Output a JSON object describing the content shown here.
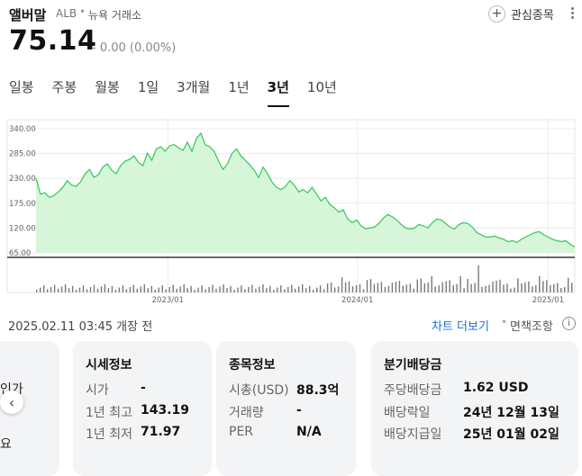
{
  "header": {
    "stock_name": "앨버말",
    "ticker": "ALB",
    "separator": "•",
    "exchange": "뉴욕 거래소",
    "watch_label": "관심종목",
    "price": "75.14",
    "change": "- 0.00 (0.00%)"
  },
  "tabs": [
    {
      "label": "일봉"
    },
    {
      "label": "주봉"
    },
    {
      "label": "월봉"
    },
    {
      "label": "1일"
    },
    {
      "label": "3개월"
    },
    {
      "label": "1년"
    },
    {
      "label": "3년"
    },
    {
      "label": "10년"
    }
  ],
  "active_tab": "3년",
  "colors": {
    "line": "#34c759",
    "fill": "#d6f5d9",
    "volume": "#777777",
    "link": "#1a6fd1"
  },
  "chart_data": {
    "type": "area",
    "y_ticks": [
      "340.00",
      "285.00",
      "230.00",
      "175.00",
      "120.00",
      "65.00"
    ],
    "ylim": [
      65,
      340
    ],
    "x_ticks": [
      {
        "label": "2023/01",
        "t": 0.283
      },
      {
        "label": "2024/01",
        "t": 0.617
      },
      {
        "label": "2025/01",
        "t": 0.953
      }
    ],
    "values": [
      230,
      195,
      198,
      188,
      192,
      200,
      210,
      225,
      215,
      212,
      222,
      240,
      250,
      232,
      238,
      255,
      262,
      248,
      240,
      258,
      268,
      272,
      280,
      265,
      258,
      286,
      270,
      295,
      300,
      290,
      302,
      305,
      298,
      292,
      310,
      290,
      318,
      330,
      305,
      300,
      290,
      268,
      250,
      262,
      285,
      295,
      280,
      270,
      260,
      248,
      232,
      255,
      240,
      222,
      210,
      205,
      212,
      225,
      215,
      200,
      205,
      198,
      210,
      195,
      180,
      188,
      172,
      165,
      155,
      160,
      140,
      132,
      138,
      125,
      118,
      120,
      122,
      130,
      142,
      150,
      145,
      138,
      128,
      120,
      118,
      120,
      128,
      125,
      120,
      132,
      140,
      138,
      130,
      122,
      118,
      128,
      132,
      130,
      122,
      110,
      105,
      100,
      100,
      102,
      98,
      95,
      90,
      92,
      88,
      95,
      100,
      105,
      110,
      112,
      105,
      100,
      95,
      92,
      90,
      92,
      84,
      78
    ]
  },
  "info_bar": {
    "timestamp": "2025.02.11 03:45 개장 전",
    "chart_more": "차트 더보기",
    "separator": "•",
    "disclaimer": "면책조항",
    "info_glyph": "i"
  },
  "left_card": {
    "line1": "인가",
    "line2": "요",
    "prev_glyph": "‹"
  },
  "market_info": {
    "title": "시세정보",
    "rows": [
      {
        "label": "시가",
        "value": "-"
      },
      {
        "label": "1년 최고",
        "value": "143.19"
      },
      {
        "label": "1년 최저",
        "value": "71.97"
      }
    ]
  },
  "stock_info": {
    "title": "종목정보",
    "rows": [
      {
        "label": "시총(USD)",
        "value": "88.3억"
      },
      {
        "label": "거래량",
        "value": "-"
      },
      {
        "label": "PER",
        "value": "N/A"
      }
    ]
  },
  "dividend_info": {
    "title": "분기배당금",
    "rows": [
      {
        "label": "주당배당금",
        "value": "1.62 USD"
      },
      {
        "label": "배당락일",
        "value": "24년 12월 13일"
      },
      {
        "label": "배당지급일",
        "value": "25년 01월 02일"
      }
    ]
  }
}
